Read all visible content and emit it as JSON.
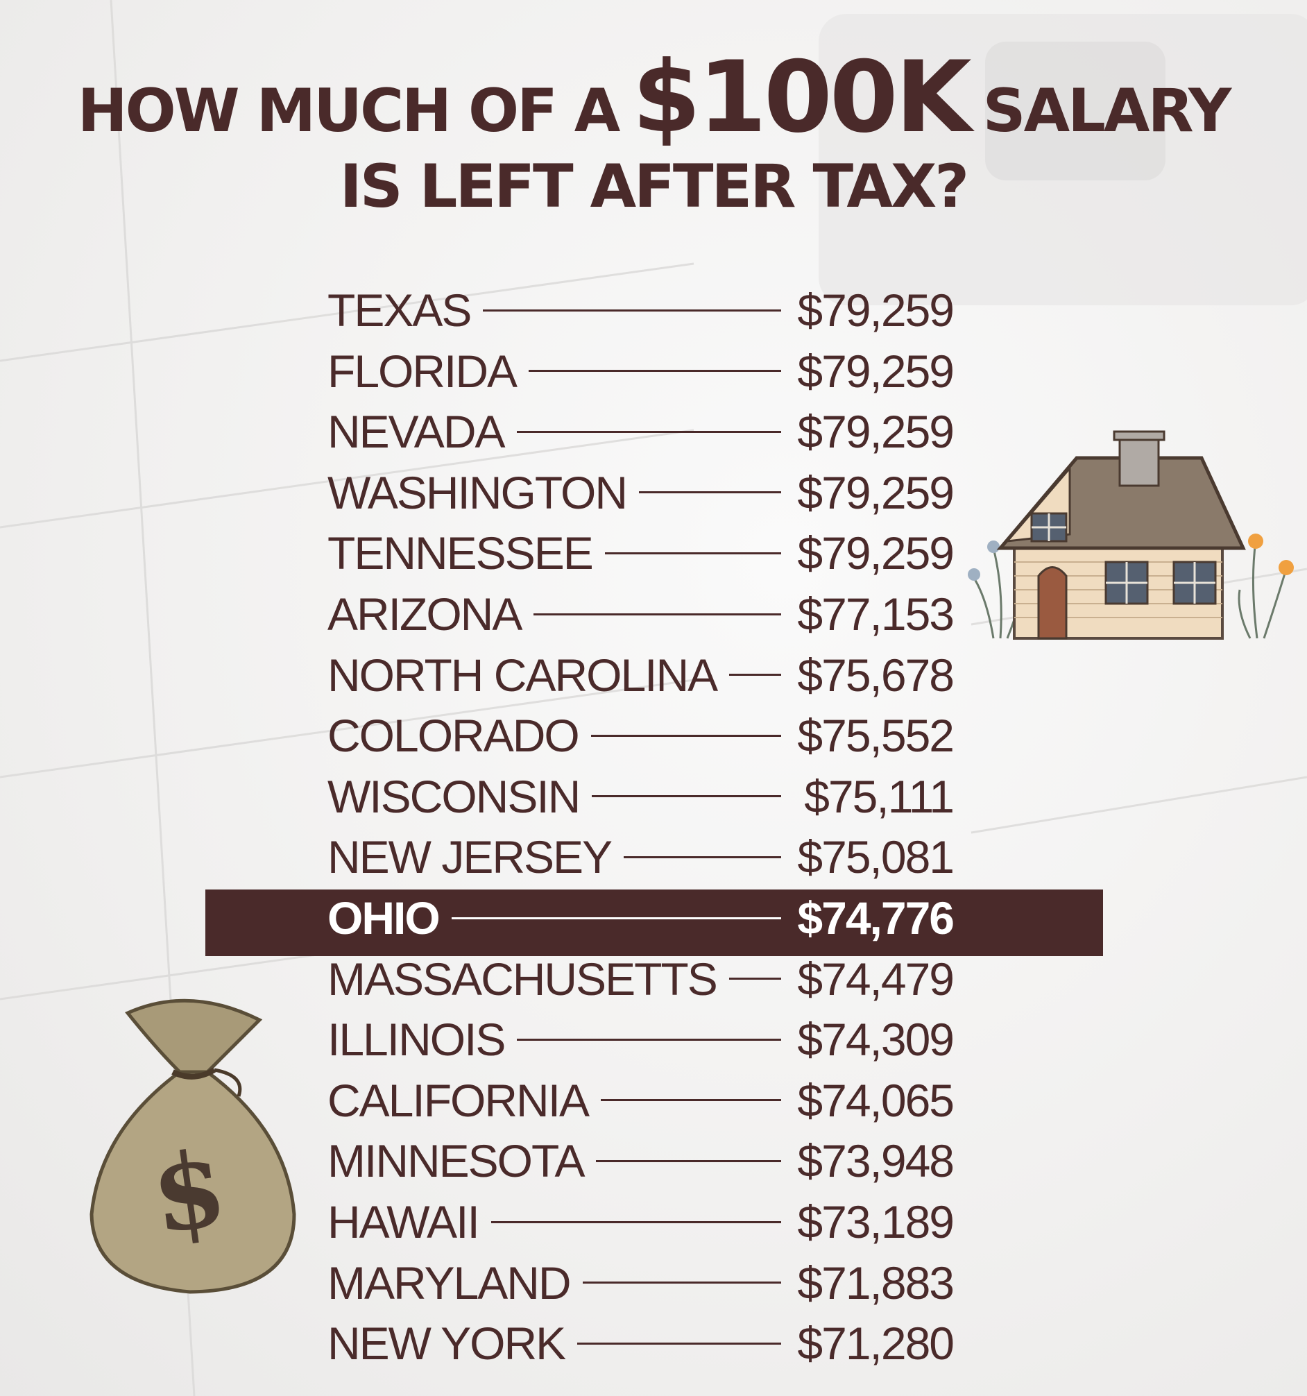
{
  "header": {
    "line1_prefix": "HOW MUCH OF A",
    "line1_amount": "$100K",
    "line1_suffix": "SALARY",
    "line2": "IS LEFT AFTER TAX?"
  },
  "states": [
    {
      "state": "TEXAS",
      "amount": "$79,259"
    },
    {
      "state": "FLORIDA",
      "amount": "$79,259"
    },
    {
      "state": "NEVADA",
      "amount": "$79,259"
    },
    {
      "state": "WASHINGTON",
      "amount": "$79,259"
    },
    {
      "state": "TENNESSEE",
      "amount": "$79,259"
    },
    {
      "state": "ARIZONA",
      "amount": "$77,153"
    },
    {
      "state": "NORTH CAROLINA",
      "amount": "$75,678"
    },
    {
      "state": "COLORADO",
      "amount": "$75,552"
    },
    {
      "state": "WISCONSIN",
      "amount": "$75,111"
    },
    {
      "state": "NEW JERSEY",
      "amount": "$75,081"
    },
    {
      "state": "OHIO",
      "amount": "$74,776",
      "highlighted": true
    },
    {
      "state": "MASSACHUSETTS",
      "amount": "$74,479"
    },
    {
      "state": "ILLINOIS",
      "amount": "$74,309"
    },
    {
      "state": "CALIFORNIA",
      "amount": "$74,065"
    },
    {
      "state": "MINNESOTA",
      "amount": "$73,948"
    },
    {
      "state": "HAWAII",
      "amount": "$73,189"
    },
    {
      "state": "MARYLAND",
      "amount": "$71,883"
    },
    {
      "state": "NEW YORK",
      "amount": "$71,280"
    }
  ],
  "illustrations": {
    "house": "house-icon",
    "money_bag": "money-bag-icon",
    "money_bag_symbol": "$"
  },
  "colors": {
    "text": "#4a2a2a",
    "highlight_bg": "#4a2a2a",
    "highlight_text": "#ffffff"
  }
}
